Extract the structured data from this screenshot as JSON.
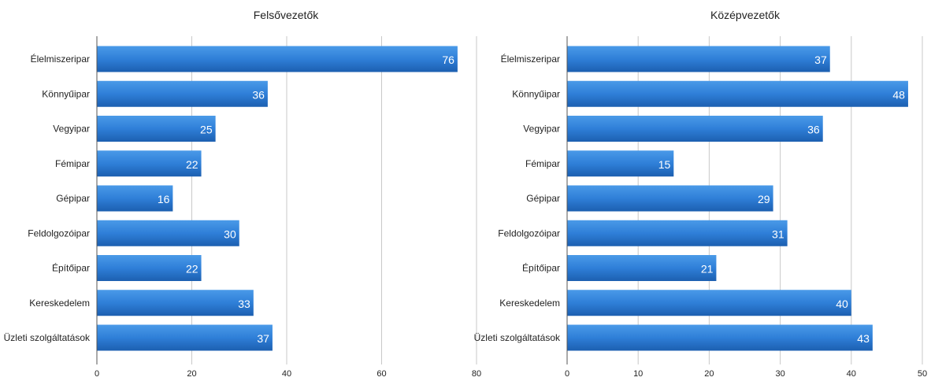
{
  "chart_data": [
    {
      "type": "bar",
      "orientation": "horizontal",
      "title": "Felsővezetők",
      "categories": [
        "Élelmiszeripar",
        "Könnyűipar",
        "Vegyipar",
        "Fémipar",
        "Gépipar",
        "Feldolgozóipar",
        "Építőipar",
        "Kereskedelem",
        "Üzleti szolgáltatások"
      ],
      "values": [
        76,
        36,
        25,
        22,
        16,
        30,
        22,
        33,
        37
      ],
      "value_labels": [
        "76",
        "36",
        "25",
        "22",
        "16",
        "30",
        "22",
        "33",
        "37"
      ],
      "xlim": [
        0,
        80
      ],
      "xticks": [
        0,
        20,
        40,
        60,
        80
      ],
      "xtick_labels": [
        "0",
        "20",
        "40",
        "60",
        "80"
      ],
      "grid": true,
      "bar_color": "#2f7fd8"
    },
    {
      "type": "bar",
      "orientation": "horizontal",
      "title": "Középvezetők",
      "categories": [
        "Élelmiszeripar",
        "Könnyűipar",
        "Vegyipar",
        "Fémipar",
        "Gépipar",
        "Feldolgozóipar",
        "Építőipar",
        "Kereskedelem",
        "Üzleti szolgáltatások"
      ],
      "values": [
        37,
        48,
        36,
        15,
        29,
        31,
        21,
        40,
        43
      ],
      "value_labels": [
        "37",
        "48",
        "36",
        "15",
        "29",
        "31",
        "21",
        "40",
        "43"
      ],
      "xlim": [
        0,
        50
      ],
      "xticks": [
        0,
        10,
        20,
        30,
        40,
        50
      ],
      "xtick_labels": [
        "0",
        "10",
        "20",
        "30",
        "40",
        "50"
      ],
      "grid": true,
      "bar_color": "#2f7fd8"
    }
  ]
}
